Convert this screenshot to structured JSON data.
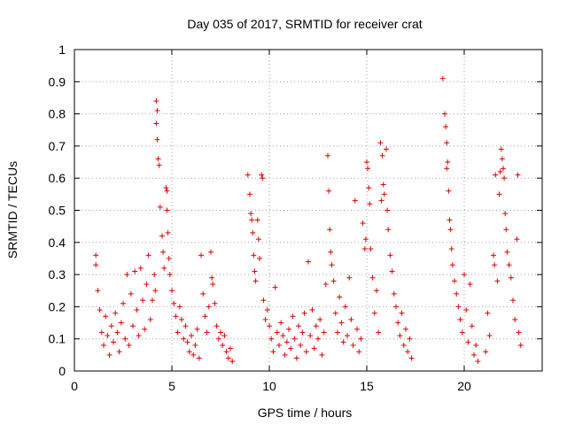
{
  "chart_data": {
    "type": "scatter",
    "title": "Day 035 of 2017, SRMTID for receiver crat",
    "xlabel": "GPS time / hours",
    "ylabel": "SRMTID / TECUs",
    "xlim": [
      0,
      24
    ],
    "ylim": [
      0,
      1
    ],
    "xticks": [
      0,
      5,
      10,
      15,
      20
    ],
    "yticks": [
      0,
      0.1,
      0.2,
      0.3,
      0.4,
      0.5,
      0.6,
      0.7,
      0.8,
      0.9,
      1
    ],
    "xtick_labels": [
      "0",
      "5",
      "10",
      "15",
      "20"
    ],
    "ytick_labels": [
      "0",
      "0.1",
      "0.2",
      "0.3",
      "0.4",
      "0.5",
      "0.6",
      "0.7",
      "0.8",
      "0.9",
      "1"
    ],
    "grid": true,
    "marker": "+",
    "color": "#e00000",
    "series": [
      {
        "name": "SRMTID",
        "points": [
          [
            1.1,
            0.36
          ],
          [
            1.1,
            0.33
          ],
          [
            1.2,
            0.25
          ],
          [
            1.3,
            0.19
          ],
          [
            1.4,
            0.12
          ],
          [
            1.5,
            0.08
          ],
          [
            1.6,
            0.17
          ],
          [
            1.7,
            0.11
          ],
          [
            1.8,
            0.05
          ],
          [
            1.9,
            0.14
          ],
          [
            2.0,
            0.09
          ],
          [
            2.1,
            0.18
          ],
          [
            2.2,
            0.12
          ],
          [
            2.3,
            0.06
          ],
          [
            2.4,
            0.15
          ],
          [
            2.5,
            0.21
          ],
          [
            2.6,
            0.1
          ],
          [
            2.7,
            0.3
          ],
          [
            2.8,
            0.08
          ],
          [
            2.9,
            0.24
          ],
          [
            3.0,
            0.14
          ],
          [
            3.1,
            0.31
          ],
          [
            3.2,
            0.19
          ],
          [
            3.3,
            0.11
          ],
          [
            3.4,
            0.32
          ],
          [
            3.5,
            0.22
          ],
          [
            3.6,
            0.13
          ],
          [
            3.7,
            0.27
          ],
          [
            3.8,
            0.36
          ],
          [
            3.9,
            0.16
          ],
          [
            4.0,
            0.22
          ],
          [
            4.1,
            0.3
          ],
          [
            4.15,
            0.25
          ],
          [
            4.2,
            0.84
          ],
          [
            4.25,
            0.81
          ],
          [
            4.2,
            0.77
          ],
          [
            4.25,
            0.72
          ],
          [
            4.3,
            0.66
          ],
          [
            4.35,
            0.64
          ],
          [
            4.4,
            0.51
          ],
          [
            4.5,
            0.42
          ],
          [
            4.55,
            0.37
          ],
          [
            4.6,
            0.32
          ],
          [
            4.7,
            0.57
          ],
          [
            4.75,
            0.56
          ],
          [
            4.75,
            0.5
          ],
          [
            4.8,
            0.43
          ],
          [
            4.85,
            0.35
          ],
          [
            4.9,
            0.3
          ],
          [
            5.0,
            0.25
          ],
          [
            5.1,
            0.21
          ],
          [
            5.2,
            0.17
          ],
          [
            5.3,
            0.12
          ],
          [
            5.4,
            0.2
          ],
          [
            5.5,
            0.16
          ],
          [
            5.6,
            0.1
          ],
          [
            5.7,
            0.14
          ],
          [
            5.8,
            0.09
          ],
          [
            5.9,
            0.06
          ],
          [
            6.0,
            0.11
          ],
          [
            6.1,
            0.05
          ],
          [
            6.2,
            0.08
          ],
          [
            6.3,
            0.13
          ],
          [
            6.4,
            0.04
          ],
          [
            6.5,
            0.36
          ],
          [
            6.6,
            0.24
          ],
          [
            6.7,
            0.17
          ],
          [
            6.8,
            0.12
          ],
          [
            6.9,
            0.2
          ],
          [
            7.0,
            0.37
          ],
          [
            7.05,
            0.29
          ],
          [
            7.1,
            0.27
          ],
          [
            7.2,
            0.21
          ],
          [
            7.3,
            0.14
          ],
          [
            7.4,
            0.1
          ],
          [
            7.5,
            0.12
          ],
          [
            7.6,
            0.08
          ],
          [
            7.7,
            0.11
          ],
          [
            7.8,
            0.06
          ],
          [
            7.9,
            0.04
          ],
          [
            8.0,
            0.07
          ],
          [
            8.1,
            0.03
          ],
          [
            8.9,
            0.61
          ],
          [
            9.0,
            0.55
          ],
          [
            9.05,
            0.49
          ],
          [
            9.1,
            0.47
          ],
          [
            9.15,
            0.43
          ],
          [
            9.2,
            0.36
          ],
          [
            9.25,
            0.31
          ],
          [
            9.3,
            0.28
          ],
          [
            9.4,
            0.47
          ],
          [
            9.45,
            0.41
          ],
          [
            9.5,
            0.35
          ],
          [
            9.6,
            0.61
          ],
          [
            9.65,
            0.6
          ],
          [
            9.7,
            0.22
          ],
          [
            9.8,
            0.16
          ],
          [
            9.9,
            0.19
          ],
          [
            10.0,
            0.14
          ],
          [
            10.1,
            0.1
          ],
          [
            10.2,
            0.06
          ],
          [
            10.3,
            0.26
          ],
          [
            10.4,
            0.12
          ],
          [
            10.5,
            0.08
          ],
          [
            10.6,
            0.15
          ],
          [
            10.7,
            0.11
          ],
          [
            10.8,
            0.05
          ],
          [
            10.9,
            0.09
          ],
          [
            11.0,
            0.13
          ],
          [
            11.1,
            0.07
          ],
          [
            11.2,
            0.17
          ],
          [
            11.3,
            0.1
          ],
          [
            11.4,
            0.04
          ],
          [
            11.5,
            0.14
          ],
          [
            11.6,
            0.08
          ],
          [
            11.7,
            0.12
          ],
          [
            11.8,
            0.18
          ],
          [
            11.9,
            0.06
          ],
          [
            12.0,
            0.34
          ],
          [
            12.1,
            0.11
          ],
          [
            12.2,
            0.19
          ],
          [
            12.3,
            0.07
          ],
          [
            12.4,
            0.14
          ],
          [
            12.5,
            0.1
          ],
          [
            12.6,
            0.16
          ],
          [
            12.7,
            0.05
          ],
          [
            12.8,
            0.12
          ],
          [
            12.9,
            0.27
          ],
          [
            13.0,
            0.67
          ],
          [
            13.05,
            0.56
          ],
          [
            13.1,
            0.44
          ],
          [
            13.15,
            0.37
          ],
          [
            13.2,
            0.33
          ],
          [
            13.3,
            0.28
          ],
          [
            13.4,
            0.18
          ],
          [
            13.5,
            0.12
          ],
          [
            13.6,
            0.23
          ],
          [
            13.7,
            0.15
          ],
          [
            13.8,
            0.09
          ],
          [
            13.9,
            0.2
          ],
          [
            14.0,
            0.11
          ],
          [
            14.1,
            0.29
          ],
          [
            14.2,
            0.16
          ],
          [
            14.3,
            0.08
          ],
          [
            14.4,
            0.53
          ],
          [
            14.5,
            0.13
          ],
          [
            14.6,
            0.06
          ],
          [
            14.7,
            0.1
          ],
          [
            14.8,
            0.46
          ],
          [
            14.9,
            0.38
          ],
          [
            14.95,
            0.41
          ],
          [
            15.0,
            0.65
          ],
          [
            15.05,
            0.63
          ],
          [
            15.1,
            0.57
          ],
          [
            15.15,
            0.52
          ],
          [
            15.2,
            0.38
          ],
          [
            15.3,
            0.29
          ],
          [
            15.4,
            0.18
          ],
          [
            15.5,
            0.25
          ],
          [
            15.6,
            0.12
          ],
          [
            15.7,
            0.71
          ],
          [
            15.75,
            0.53
          ],
          [
            15.8,
            0.67
          ],
          [
            15.85,
            0.58
          ],
          [
            15.9,
            0.55
          ],
          [
            16.0,
            0.69
          ],
          [
            16.05,
            0.5
          ],
          [
            16.1,
            0.44
          ],
          [
            16.2,
            0.36
          ],
          [
            16.3,
            0.31
          ],
          [
            16.4,
            0.24
          ],
          [
            16.5,
            0.2
          ],
          [
            16.6,
            0.15
          ],
          [
            16.7,
            0.11
          ],
          [
            16.8,
            0.18
          ],
          [
            16.9,
            0.08
          ],
          [
            17.0,
            0.13
          ],
          [
            17.1,
            0.06
          ],
          [
            17.2,
            0.1
          ],
          [
            17.3,
            0.04
          ],
          [
            18.9,
            0.91
          ],
          [
            19.0,
            0.8
          ],
          [
            19.05,
            0.76
          ],
          [
            19.1,
            0.71
          ],
          [
            19.15,
            0.65
          ],
          [
            19.1,
            0.63
          ],
          [
            19.2,
            0.56
          ],
          [
            19.25,
            0.47
          ],
          [
            19.3,
            0.44
          ],
          [
            19.35,
            0.38
          ],
          [
            19.4,
            0.33
          ],
          [
            19.5,
            0.28
          ],
          [
            19.6,
            0.24
          ],
          [
            19.7,
            0.2
          ],
          [
            19.8,
            0.16
          ],
          [
            19.9,
            0.12
          ],
          [
            20.0,
            0.3
          ],
          [
            20.1,
            0.19
          ],
          [
            20.2,
            0.09
          ],
          [
            20.3,
            0.27
          ],
          [
            20.4,
            0.14
          ],
          [
            20.5,
            0.05
          ],
          [
            20.6,
            0.08
          ],
          [
            20.7,
            0.03
          ],
          [
            21.1,
            0.06
          ],
          [
            21.2,
            0.18
          ],
          [
            21.3,
            0.11
          ],
          [
            21.5,
            0.36
          ],
          [
            21.55,
            0.33
          ],
          [
            21.6,
            0.61
          ],
          [
            21.7,
            0.28
          ],
          [
            21.8,
            0.55
          ],
          [
            21.85,
            0.62
          ],
          [
            21.9,
            0.69
          ],
          [
            21.95,
            0.66
          ],
          [
            22.0,
            0.63
          ],
          [
            22.05,
            0.6
          ],
          [
            22.1,
            0.49
          ],
          [
            22.15,
            0.44
          ],
          [
            22.2,
            0.37
          ],
          [
            22.3,
            0.33
          ],
          [
            22.4,
            0.29
          ],
          [
            22.5,
            0.22
          ],
          [
            22.6,
            0.16
          ],
          [
            22.7,
            0.41
          ],
          [
            22.75,
            0.61
          ],
          [
            22.8,
            0.12
          ],
          [
            22.9,
            0.08
          ]
        ]
      }
    ]
  }
}
